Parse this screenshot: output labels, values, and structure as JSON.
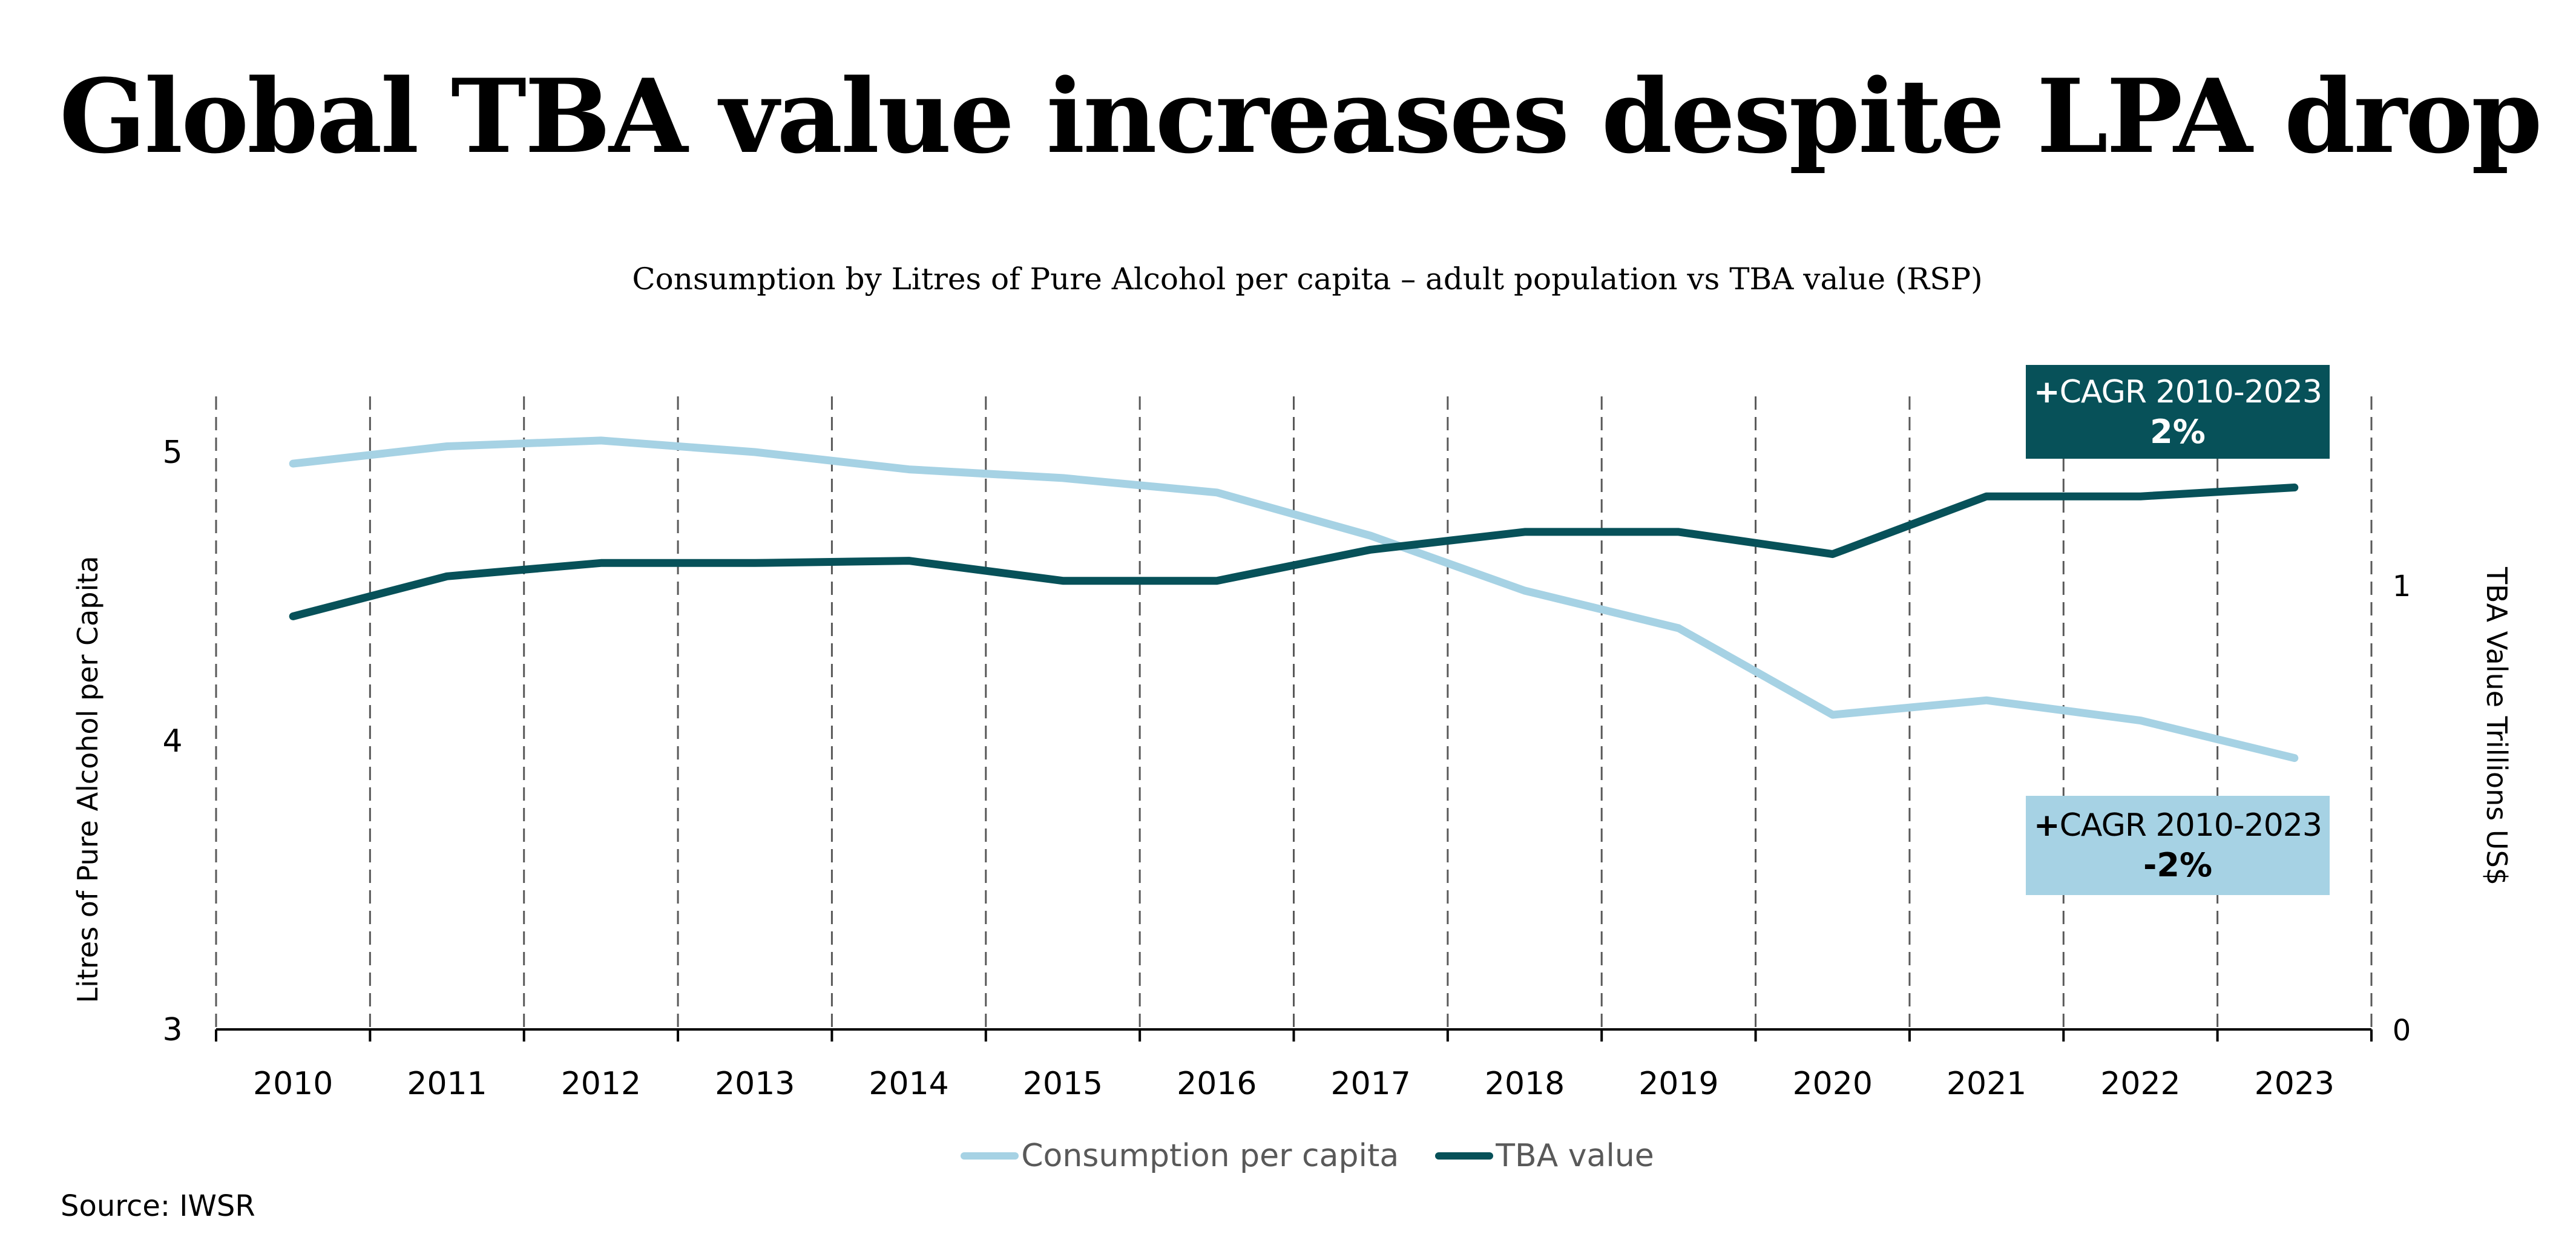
{
  "title": "Global TBA value increases despite LPA drop",
  "subtitle": "Consumption by Litres of Pure Alcohol per capita – adult population vs TBA value (RSP)",
  "source": "Source: IWSR",
  "colors": {
    "consumption": "#a6d2e4",
    "tba": "#075159",
    "gridline": "#595959",
    "axis": "#000000",
    "legend_text": "#595959"
  },
  "annotations": [
    {
      "id": "tba-cagr",
      "prefix": "+",
      "label": "CAGR 2010-2023",
      "value": "2%",
      "style": "dark"
    },
    {
      "id": "consumption-cagr",
      "prefix": "+",
      "label": "CAGR 2010-2023",
      "value": "-2%",
      "style": "light"
    }
  ],
  "legend": [
    {
      "name": "Consumption per capita",
      "color": "#a6d2e4"
    },
    {
      "name": "TBA value",
      "color": "#075159"
    }
  ],
  "chart_data": {
    "type": "line",
    "title": "Global TBA value increases despite LPA drop",
    "subtitle": "Consumption by Litres of Pure Alcohol per capita – adult population vs TBA value (RSP)",
    "x": [
      "2010",
      "2011",
      "2012",
      "2013",
      "2014",
      "2015",
      "2016",
      "2017",
      "2018",
      "2019",
      "2020",
      "2021",
      "2022",
      "2023"
    ],
    "xlabel": "",
    "ylabel": "Litres of Pure Alcohol per Capita",
    "ylabel_right": "TBA Value Trillions US$",
    "ylim": [
      3,
      5.2
    ],
    "ylim_right": [
      0,
      1.4
    ],
    "yticks": [
      3,
      4,
      5
    ],
    "yticks_right": [
      0,
      1
    ],
    "grid": "vertical dashed lines between categories",
    "legend_position": "bottom-center",
    "series": [
      {
        "name": "Consumption per capita",
        "axis": "left",
        "color": "#a6d2e4",
        "values": [
          4.96,
          5.02,
          5.04,
          5.0,
          4.94,
          4.91,
          4.86,
          4.71,
          4.52,
          4.39,
          4.09,
          4.14,
          4.07,
          3.94
        ]
      },
      {
        "name": "TBA value",
        "axis": "right",
        "color": "#075159",
        "values": [
          0.93,
          1.02,
          1.05,
          1.05,
          1.055,
          1.01,
          1.01,
          1.08,
          1.12,
          1.12,
          1.07,
          1.2,
          1.2,
          1.22
        ]
      }
    ],
    "annotations": [
      {
        "text": "+CAGR 2010-2023 2%",
        "series": "TBA value"
      },
      {
        "text": "+CAGR 2010-2023 -2%",
        "series": "Consumption per capita"
      }
    ]
  }
}
